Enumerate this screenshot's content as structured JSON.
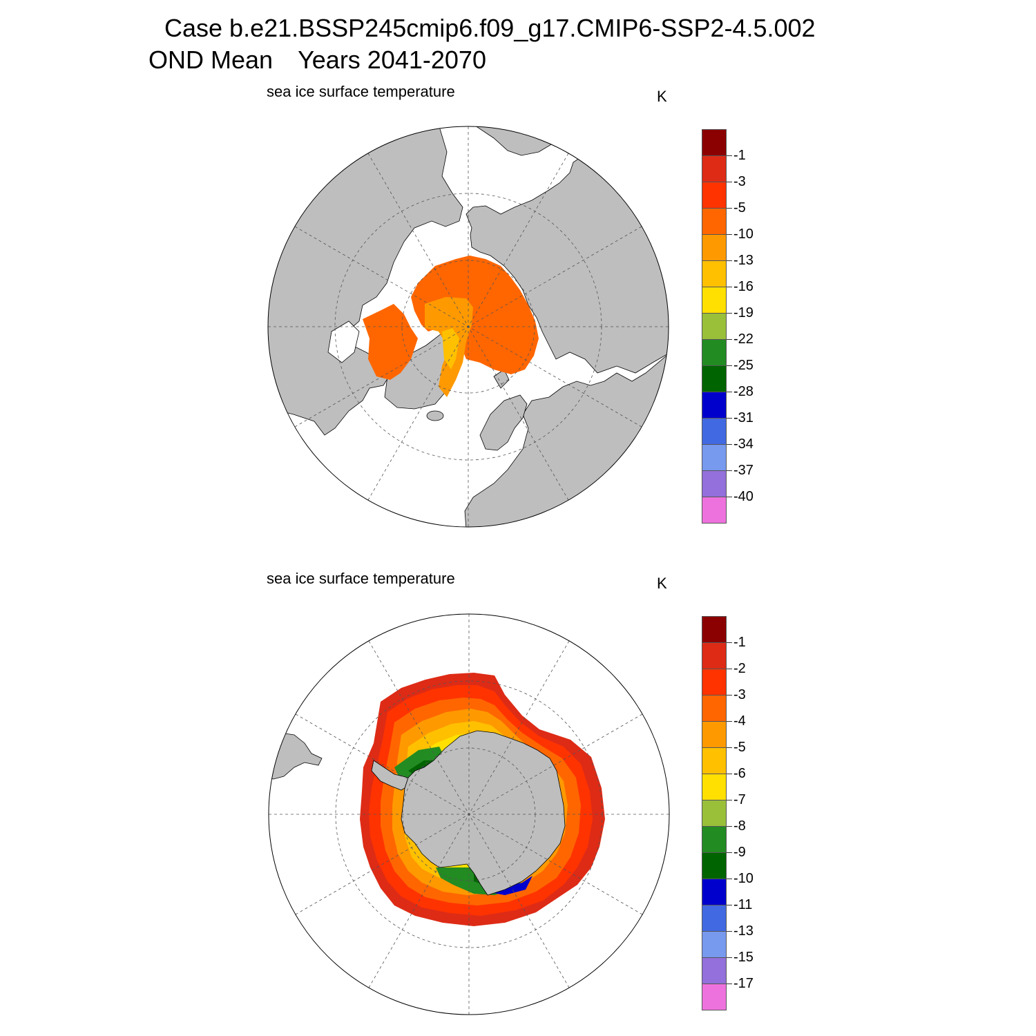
{
  "figure": {
    "title_line1": "Case b.e21.BSSP245cmip6.f09_g17.CMIP6-SSP2-4.5.002",
    "title_season": "OND Mean",
    "title_years": "Years 2041-2070"
  },
  "colors": {
    "land": "#bebebe",
    "ocean": "#ffffff",
    "palette": [
      "#8b0000",
      "#dd2b16",
      "#ff3300",
      "#ff6600",
      "#ff9900",
      "#ffc000",
      "#ffe000",
      "#9ac03a",
      "#228b22",
      "#006400",
      "#0000cd",
      "#4169e1",
      "#7799ee",
      "#9370db",
      "#ee72dd"
    ]
  },
  "panels": [
    {
      "id": "north",
      "subtitle": "sea ice surface temperature",
      "units": "K",
      "hemisphere": "Northern",
      "colorbar_labels": [
        "-1",
        "-3",
        "-5",
        "-10",
        "-13",
        "-16",
        "-19",
        "-22",
        "-25",
        "-28",
        "-31",
        "-34",
        "-37",
        "-40"
      ]
    },
    {
      "id": "south",
      "subtitle": "sea ice surface temperature",
      "units": "K",
      "hemisphere": "Southern",
      "colorbar_labels": [
        "-1",
        "-2",
        "-3",
        "-4",
        "-5",
        "-6",
        "-7",
        "-8",
        "-9",
        "-10",
        "-11",
        "-13",
        "-15",
        "-17"
      ]
    }
  ]
}
